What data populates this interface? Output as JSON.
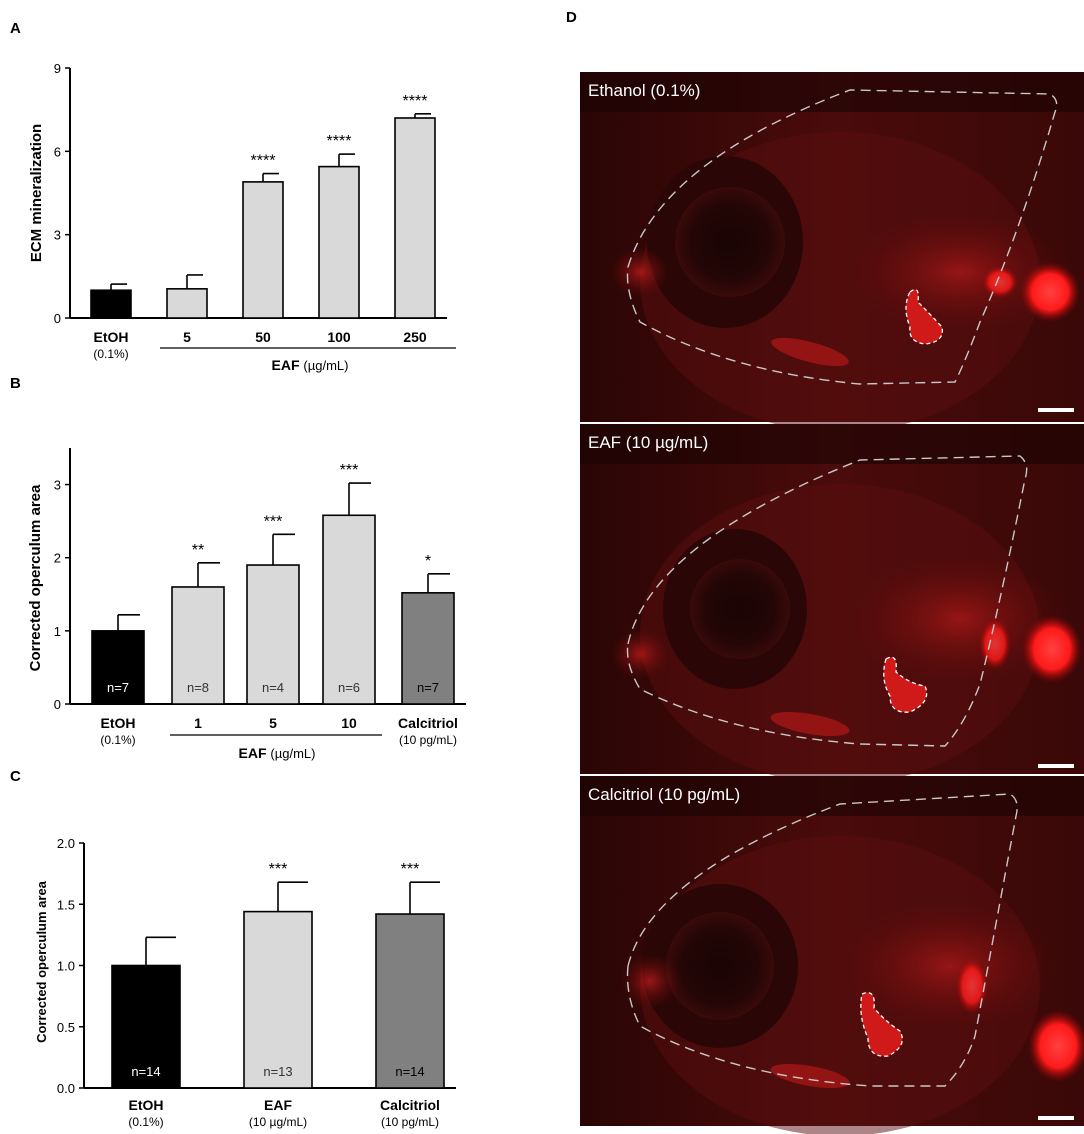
{
  "panels": {
    "A": "A",
    "B": "B",
    "C": "C",
    "D": "D"
  },
  "chart_data": [
    {
      "panel": "A",
      "type": "bar",
      "ylabel": "ECM mineralization",
      "ylim": [
        0,
        9
      ],
      "yticks": [
        "0",
        "3",
        "6",
        "9"
      ],
      "categories": [
        "EtOH",
        "5",
        "50",
        "100",
        "250"
      ],
      "category_sublabels": [
        "(0.1%)",
        "",
        "",
        "",
        ""
      ],
      "values": [
        1.0,
        1.05,
        4.9,
        5.45,
        7.2
      ],
      "errors": [
        0.22,
        0.5,
        0.3,
        0.45,
        0.15
      ],
      "colors": [
        "#000000",
        "#d9d9d9",
        "#d9d9d9",
        "#d9d9d9",
        "#d9d9d9"
      ],
      "significance": [
        "",
        "",
        "****",
        "****",
        "****"
      ],
      "group_label": "EAF",
      "group_unit": "(µg/mL)",
      "grid": false
    },
    {
      "panel": "B",
      "type": "bar",
      "ylabel": "Corrected operculum area",
      "ylim": [
        0,
        3.5
      ],
      "yticks": [
        "0",
        "1",
        "2",
        "3"
      ],
      "categories": [
        "EtOH",
        "1",
        "5",
        "10",
        "Calcitriol"
      ],
      "category_sublabels": [
        "(0.1%)",
        "",
        "",
        "",
        "(10 pg/mL)"
      ],
      "values": [
        1.0,
        1.6,
        1.9,
        2.58,
        1.52
      ],
      "errors": [
        0.22,
        0.33,
        0.42,
        0.44,
        0.26
      ],
      "colors": [
        "#000000",
        "#d9d9d9",
        "#d9d9d9",
        "#d9d9d9",
        "#808080"
      ],
      "significance": [
        "",
        "**",
        "***",
        "***",
        "*"
      ],
      "n_labels": [
        "n=7",
        "n=8",
        "n=4",
        "n=6",
        "n=7"
      ],
      "group_label": "EAF",
      "group_unit": "(µg/mL)",
      "grid": false
    },
    {
      "panel": "C",
      "type": "bar",
      "ylabel": "Corrected operculum area",
      "ylim": [
        0,
        2.0
      ],
      "yticks": [
        "0.0",
        "0.5",
        "1.0",
        "1.5",
        "2.0"
      ],
      "categories": [
        "EtOH",
        "EAF",
        "Calcitriol"
      ],
      "category_sublabels": [
        "(0.1%)",
        "(10 µg/mL)",
        "(10 pg/mL)"
      ],
      "values": [
        1.0,
        1.44,
        1.42
      ],
      "errors": [
        0.23,
        0.24,
        0.26
      ],
      "colors": [
        "#000000",
        "#d9d9d9",
        "#808080"
      ],
      "significance": [
        "",
        "***",
        "***"
      ],
      "n_labels": [
        "n=14",
        "n=13",
        "n=14"
      ],
      "grid": false
    }
  ],
  "images": [
    {
      "label": "Ethanol (0.1%)"
    },
    {
      "label": "EAF (10 µg/mL)"
    },
    {
      "label": "Calcitriol (10 pg/mL)"
    }
  ],
  "icons": [
    "fish-head-image",
    "scale-bar"
  ]
}
